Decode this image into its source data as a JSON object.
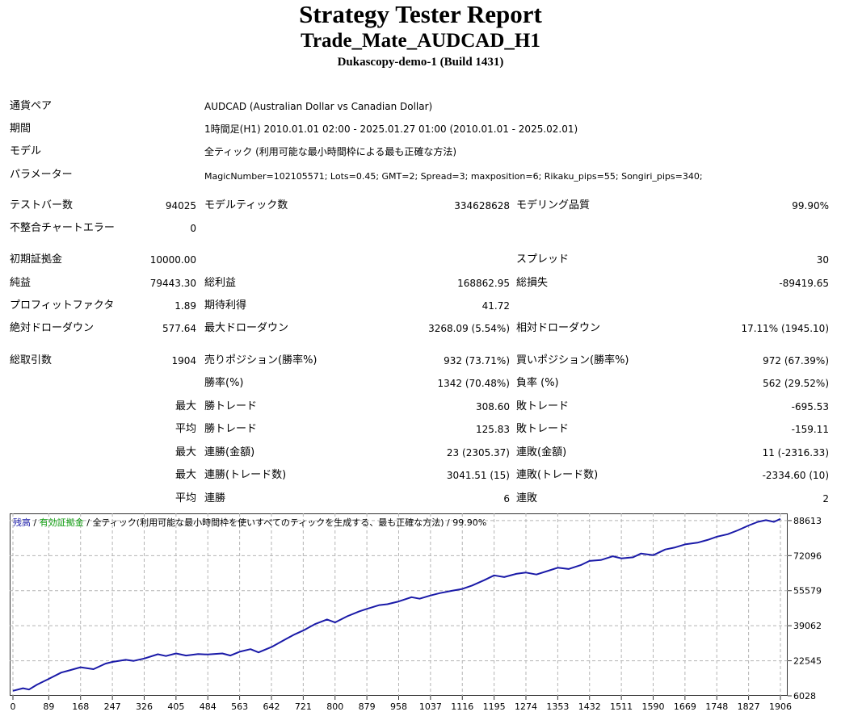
{
  "header": {
    "title": "Strategy Tester Report",
    "ea_name": "Trade_Mate_AUDCAD_H1",
    "server": "Dukascopy-demo-1 (Build 1431)"
  },
  "settings": {
    "symbol_label": "通貨ペア",
    "symbol_value": "AUDCAD (Australian Dollar vs Canadian Dollar)",
    "period_label": "期間",
    "period_value": "1時間足(H1) 2010.01.01 02:00 - 2025.01.27 01:00 (2010.01.01 - 2025.02.01)",
    "model_label": "モデル",
    "model_value": "全ティック (利用可能な最小時間枠による最も正確な方法)",
    "params_label": "パラメーター",
    "params_value": "MagicNumber=102105571; Lots=0.45; GMT=2; Spread=3; maxposition=6; Rikaku_pips=55; Songiri_pips=340;"
  },
  "stats": {
    "bars_label": "テストバー数",
    "bars_value": "94025",
    "ticks_label": "モデルティック数",
    "ticks_value": "334628628",
    "quality_label": "モデリング品質",
    "quality_value": "99.90%",
    "mismatch_label": "不整合チャートエラー",
    "mismatch_value": "0",
    "deposit_label": "初期証拠金",
    "deposit_value": "10000.00",
    "spread_label": "スプレッド",
    "spread_value": "30",
    "net_label": "純益",
    "net_value": "79443.30",
    "gross_profit_label": "総利益",
    "gross_profit_value": "168862.95",
    "gross_loss_label": "総損失",
    "gross_loss_value": "-89419.65",
    "pf_label": "プロフィットファクタ",
    "pf_value": "1.89",
    "expected_label": "期待利得",
    "expected_value": "41.72",
    "abs_dd_label": "絶対ドローダウン",
    "abs_dd_value": "577.64",
    "max_dd_label": "最大ドローダウン",
    "max_dd_value": "3268.09 (5.54%)",
    "rel_dd_label": "相対ドローダウン",
    "rel_dd_value": "17.11% (1945.10)",
    "trades_label": "総取引数",
    "trades_value": "1904",
    "short_label": "売りポジション(勝率%)",
    "short_value": "932 (73.71%)",
    "long_label": "買いポジション(勝率%)",
    "long_value": "972 (67.39%)",
    "win_rate_label": "勝率(%)",
    "win_rate_value": "1342 (70.48%)",
    "loss_rate_label": "負率 (%)",
    "loss_rate_value": "562 (29.52%)",
    "max_prefix": "最大",
    "avg_prefix": "平均",
    "largest_win_label": "勝トレード",
    "largest_win_value": "308.60",
    "largest_loss_label": "敗トレード",
    "largest_loss_value": "-695.53",
    "avg_win_label": "勝トレード",
    "avg_win_value": "125.83",
    "avg_loss_label": "敗トレード",
    "avg_loss_value": "-159.11",
    "max_cons_wins_label": "連勝(金額)",
    "max_cons_wins_value": "23 (2305.37)",
    "max_cons_losses_label": "連敗(金額)",
    "max_cons_losses_value": "11 (-2316.33)",
    "max_cons_profit_label": "連勝(トレード数)",
    "max_cons_profit_value": "3041.51 (15)",
    "max_cons_loss_label": "連敗(トレード数)",
    "max_cons_loss_value": "-2334.60 (10)",
    "avg_cons_wins_label": "連勝",
    "avg_cons_wins_value": "6",
    "avg_cons_losses_label": "連敗",
    "avg_cons_losses_value": "2"
  },
  "chart_legend": {
    "balance": "残高",
    "equity": "有効証拠金",
    "rest": "全ティック(利用可能な最小時間枠を使いすべてのティックを生成する、最も正確な方法)",
    "quality": "99.90%",
    "sep": "/"
  },
  "colors": {
    "line": "#1a1aa8",
    "grid": "#b4b4b4",
    "legend_balance": "#1a1aa8",
    "legend_equity": "#0a9a0a"
  },
  "chart_data": {
    "type": "line",
    "title": "",
    "xlabel": "",
    "ylabel": "",
    "x_ticks": [
      0,
      89,
      168,
      247,
      326,
      405,
      484,
      563,
      642,
      721,
      800,
      879,
      958,
      1037,
      1116,
      1195,
      1274,
      1353,
      1432,
      1511,
      1590,
      1669,
      1748,
      1827,
      1906
    ],
    "y_ticks": [
      6028,
      22545,
      39062,
      55579,
      72096,
      88613
    ],
    "xlim": [
      0,
      1906
    ],
    "ylim": [
      6028,
      92000
    ],
    "grid": true,
    "series": [
      {
        "x": [
          0,
          25,
          40,
          60,
          89,
          120,
          140,
          168,
          200,
          230,
          247,
          280,
          300,
          326,
          360,
          380,
          405,
          430,
          460,
          484,
          520,
          540,
          563,
          590,
          610,
          642,
          680,
          700,
          721,
          750,
          780,
          800,
          830,
          860,
          879,
          910,
          930,
          958,
          990,
          1010,
          1037,
          1060,
          1090,
          1116,
          1140,
          1170,
          1195,
          1220,
          1250,
          1274,
          1300,
          1330,
          1353,
          1380,
          1410,
          1432,
          1460,
          1490,
          1511,
          1540,
          1560,
          1590,
          1620,
          1645,
          1669,
          1700,
          1725,
          1748,
          1775,
          1800,
          1827,
          1850,
          1870,
          1890,
          1906
        ],
        "y": [
          8400,
          9600,
          9000,
          11300,
          14000,
          17000,
          18000,
          19500,
          18600,
          21200,
          22000,
          23000,
          22500,
          23600,
          25600,
          24800,
          26000,
          25000,
          25700,
          25500,
          26000,
          25000,
          26800,
          28000,
          26500,
          29000,
          33000,
          35000,
          36800,
          39800,
          42000,
          40600,
          43500,
          45800,
          47000,
          48800,
          49200,
          50500,
          52500,
          51800,
          53300,
          54400,
          55500,
          56400,
          58000,
          60500,
          62800,
          62000,
          63500,
          64100,
          63200,
          65000,
          66400,
          65800,
          67600,
          69600,
          70000,
          71800,
          70800,
          71300,
          73100,
          72300,
          75000,
          76000,
          77400,
          78200,
          79500,
          81000,
          82200,
          84000,
          86300,
          88000,
          88800,
          88000,
          89400
        ]
      }
    ]
  }
}
